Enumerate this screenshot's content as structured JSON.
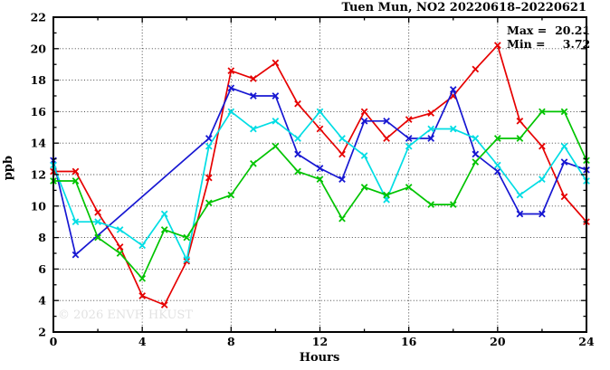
{
  "window": {
    "title": "Tuen Mun, NO2 20220618–20220621"
  },
  "annotations": {
    "max_label": "Max =",
    "max_value": "20.21",
    "min_label": "Min =",
    "min_value": "3.72",
    "watermark": "© 2026 ENVF, HKUST"
  },
  "chart_data": {
    "type": "line",
    "title": "Tuen Mun, NO2 20220618–20220621",
    "xlabel": "Hours",
    "ylabel": "ppb",
    "xlim": [
      0,
      24
    ],
    "ylim": [
      2,
      22
    ],
    "x_ticks": [
      0,
      4,
      8,
      12,
      16,
      20,
      24
    ],
    "x_minor_step": 2,
    "y_ticks": [
      2,
      4,
      6,
      8,
      10,
      12,
      14,
      16,
      18,
      20,
      22
    ],
    "y_minor_step": 1,
    "grid": "dotted-at-major-ticks",
    "legend": "none",
    "marker": "x",
    "max": 20.21,
    "min": 3.72,
    "x": [
      0,
      1,
      2,
      3,
      4,
      5,
      6,
      7,
      8,
      9,
      10,
      11,
      12,
      13,
      14,
      15,
      16,
      17,
      18,
      19,
      20,
      21,
      22,
      23,
      24
    ],
    "series": [
      {
        "name": "series-red",
        "color": "#e60000",
        "values": [
          12.2,
          12.2,
          9.6,
          7.4,
          4.3,
          3.72,
          6.5,
          11.8,
          18.6,
          18.1,
          19.1,
          16.5,
          14.9,
          13.3,
          16.0,
          14.3,
          15.5,
          15.9,
          17.0,
          18.7,
          20.21,
          15.4,
          13.8,
          10.6,
          9.0
        ]
      },
      {
        "name": "series-blue",
        "color": "#1717d2",
        "values": [
          12.9,
          6.9,
          null,
          null,
          null,
          null,
          null,
          14.3,
          17.5,
          17.0,
          17.0,
          13.3,
          12.4,
          11.7,
          15.4,
          15.4,
          14.3,
          14.3,
          17.4,
          13.3,
          12.2,
          9.5,
          9.5,
          12.8,
          12.3
        ]
      },
      {
        "name": "series-cyan",
        "color": "#00dde4",
        "values": [
          12.6,
          9.0,
          9.0,
          8.5,
          7.5,
          9.5,
          6.6,
          13.8,
          16.0,
          14.9,
          15.4,
          14.3,
          16.0,
          14.3,
          13.2,
          10.4,
          13.8,
          14.9,
          14.9,
          14.3,
          12.6,
          10.7,
          11.7,
          13.8,
          11.6
        ]
      },
      {
        "name": "series-green",
        "color": "#00c400",
        "values": [
          11.6,
          11.6,
          8.0,
          7.0,
          5.4,
          8.5,
          8.0,
          10.2,
          10.7,
          12.7,
          13.8,
          12.2,
          11.7,
          9.2,
          11.2,
          10.7,
          11.2,
          10.1,
          10.1,
          12.8,
          14.3,
          14.3,
          16.0,
          16.0,
          12.9
        ]
      }
    ]
  }
}
